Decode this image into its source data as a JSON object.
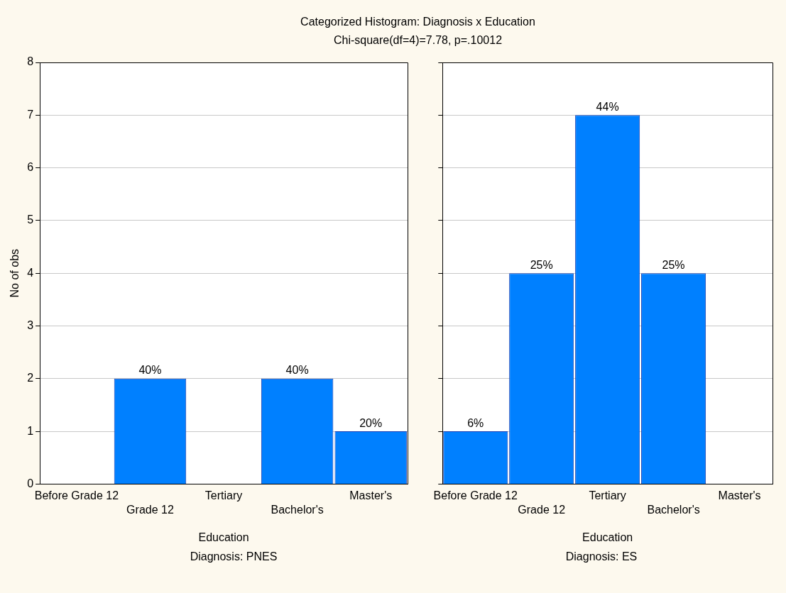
{
  "chart_data": [
    {
      "type": "bar",
      "title": "Categorized Histogram: Diagnosis x Education",
      "subtitle": "Chi-square(df=4)=7.78, p=.10012",
      "categories": [
        "Before Grade 12",
        "Grade 12",
        "Tertiary",
        "Bachelor's",
        "Master's"
      ],
      "values": [
        0,
        2,
        0,
        2,
        1
      ],
      "color": "#0080ff",
      "xlabel": "Education",
      "ylabel": "No of obs",
      "ylim": [
        0,
        8
      ],
      "yticks": [
        0,
        1,
        2,
        3,
        4,
        5,
        6,
        7,
        8
      ],
      "grid": "y",
      "annotations": [
        "Diagnosis: PNES",
        {
          "text": "40%",
          "x": "Grade 12",
          "y": 2
        },
        {
          "text": "40%",
          "x": "Bachelor's",
          "y": 2
        },
        {
          "text": "20%",
          "x": "Master's",
          "y": 1
        }
      ]
    },
    {
      "type": "bar",
      "categories": [
        "Before Grade 12",
        "Grade 12",
        "Tertiary",
        "Bachelor's",
        "Master's"
      ],
      "values": [
        1,
        4,
        7,
        4,
        0
      ],
      "color": "#0080ff",
      "xlabel": "Education",
      "ylim": [
        0,
        8
      ],
      "yticks": [
        0,
        1,
        2,
        3,
        4,
        5,
        6,
        7,
        8
      ],
      "grid": "y",
      "tick_labels": "x",
      "annotations": [
        "Diagnosis: ES",
        {
          "text": "6%",
          "x": "Before Grade 12",
          "y": 1
        },
        {
          "text": "25%",
          "x": "Grade 12",
          "y": 4
        },
        {
          "text": "44%",
          "x": "Tertiary",
          "y": 7
        },
        {
          "text": "25%",
          "x": "Bachelor's",
          "y": 4
        }
      ]
    }
  ]
}
